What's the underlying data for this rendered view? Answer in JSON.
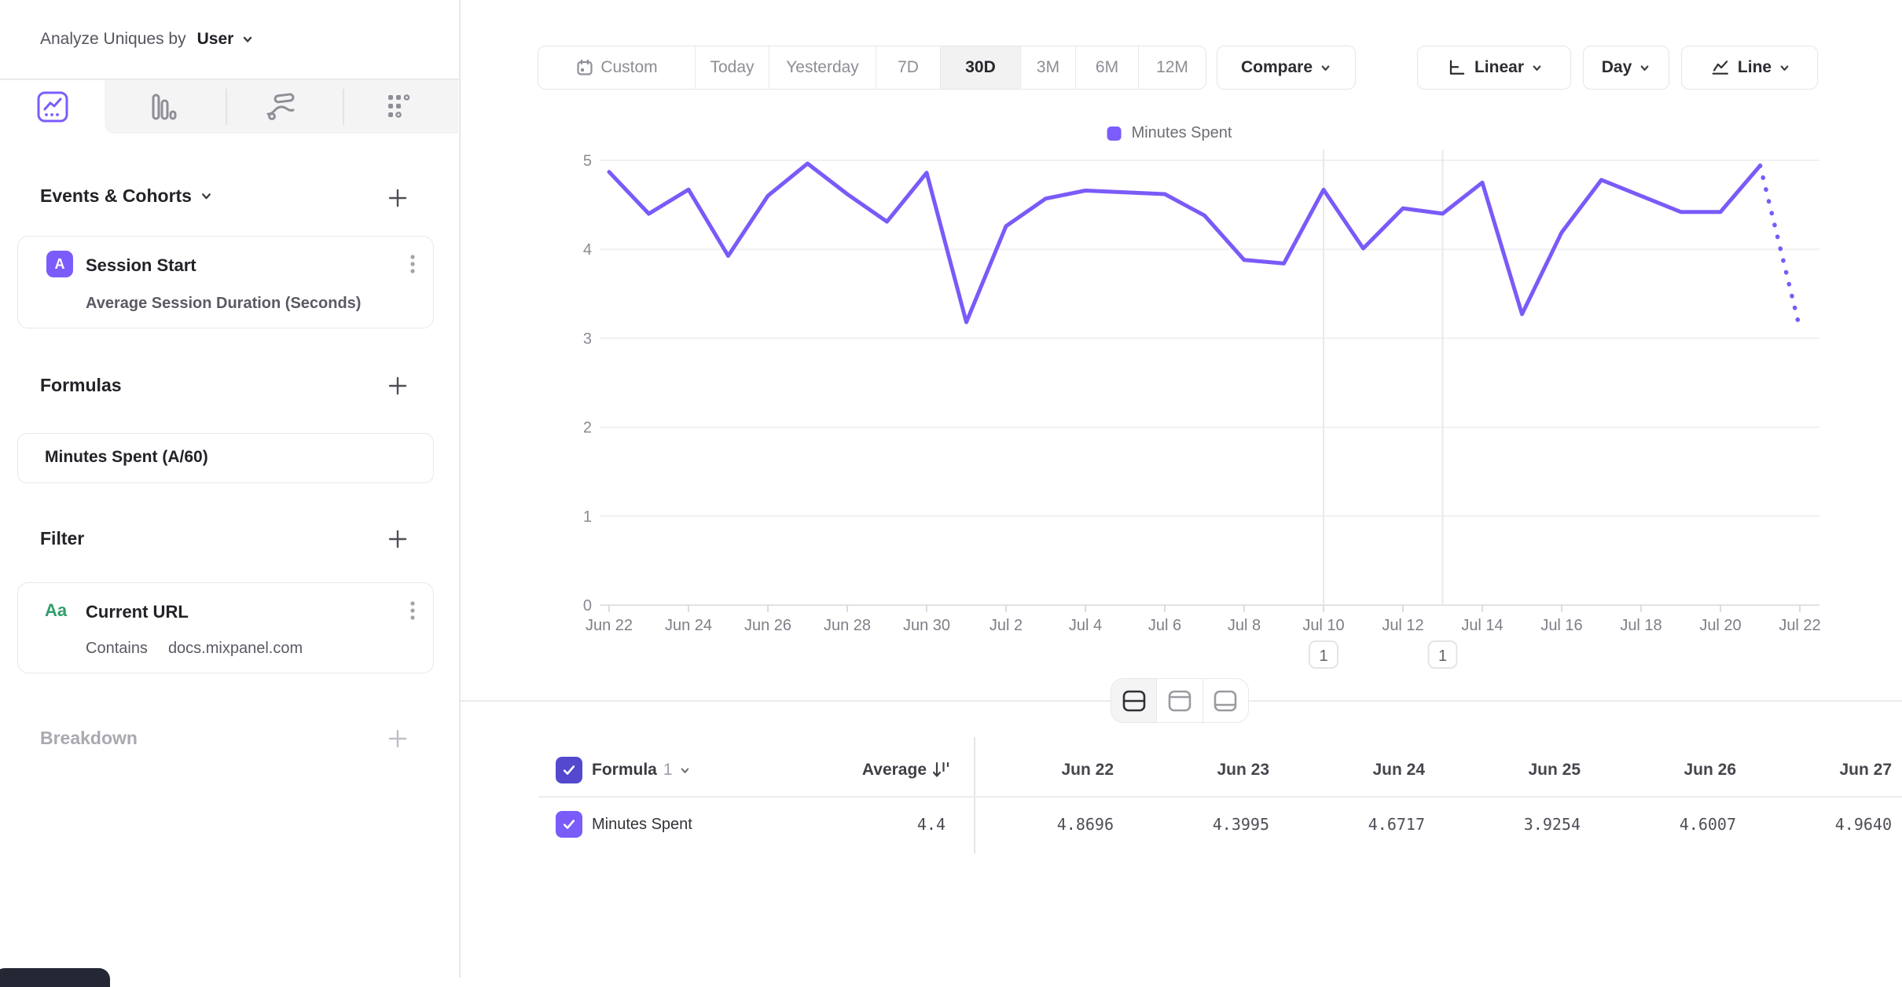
{
  "sidebar": {
    "analyze_label": "Analyze Uniques by",
    "analyze_value": "User",
    "sections": {
      "events": {
        "title": "Events & Cohorts"
      },
      "event_card": {
        "badge": "A",
        "title": "Session Start",
        "subtitle": "Average Session Duration (Seconds)"
      },
      "formulas": {
        "title": "Formulas"
      },
      "formula_card": {
        "title": "Minutes Spent (A/60)"
      },
      "filter": {
        "title": "Filter"
      },
      "filter_card": {
        "badge": "Aa",
        "title": "Current URL",
        "operator": "Contains",
        "value": "docs.mixpanel.com"
      },
      "breakdown": {
        "title": "Breakdown"
      }
    }
  },
  "toolbar": {
    "date_ranges": [
      "Custom",
      "Today",
      "Yesterday",
      "7D",
      "30D",
      "3M",
      "6M",
      "12M"
    ],
    "active_range": "30D",
    "compare_label": "Compare",
    "scale_label": "Linear",
    "granularity_label": "Day",
    "chart_type_label": "Line"
  },
  "legend": {
    "series": "Minutes Spent",
    "color": "#7c5cfc"
  },
  "chart_data": {
    "type": "line",
    "title": "Minutes Spent over time",
    "x": [
      "Jun 22",
      "Jun 23",
      "Jun 24",
      "Jun 25",
      "Jun 26",
      "Jun 27",
      "Jun 28",
      "Jun 29",
      "Jun 30",
      "Jul 1",
      "Jul 2",
      "Jul 3",
      "Jul 4",
      "Jul 5",
      "Jul 6",
      "Jul 7",
      "Jul 8",
      "Jul 9",
      "Jul 10",
      "Jul 11",
      "Jul 12",
      "Jul 13",
      "Jul 14",
      "Jul 15",
      "Jul 16",
      "Jul 17",
      "Jul 18",
      "Jul 19",
      "Jul 20",
      "Jul 21",
      "Jul 22"
    ],
    "series": [
      {
        "name": "Minutes Spent",
        "color": "#7a5af8",
        "values": [
          4.8696,
          4.3995,
          4.6717,
          3.9254,
          4.6007,
          4.964,
          4.62,
          4.31,
          4.86,
          3.18,
          4.26,
          4.57,
          4.66,
          4.64,
          4.62,
          4.38,
          3.88,
          3.84,
          4.67,
          4.01,
          4.46,
          4.4,
          4.75,
          3.27,
          4.19,
          4.78,
          4.6,
          4.42,
          4.42,
          4.94,
          3.11
        ]
      }
    ],
    "ylim": [
      0,
      5
    ],
    "yticks": [
      0,
      1,
      2,
      3,
      4,
      5
    ],
    "x_tick_every": 2,
    "grid": true,
    "legend_position": "top",
    "incomplete_last_segment": true
  },
  "annotations": [
    {
      "x_index": 18,
      "date": "Jul 10",
      "label": "1"
    },
    {
      "x_index": 21,
      "date": "Jul 13",
      "label": "1"
    }
  ],
  "table": {
    "group_label": "Formula",
    "group_index": "1",
    "average_label": "Average",
    "columns": [
      "Jun 22",
      "Jun 23",
      "Jun 24",
      "Jun 25",
      "Jun 26",
      "Jun 27"
    ],
    "rows": [
      {
        "name": "Minutes Spent",
        "average": "4.4",
        "values": [
          "4.8696",
          "4.3995",
          "4.6717",
          "3.9254",
          "4.6007",
          "4.9640"
        ]
      }
    ]
  }
}
